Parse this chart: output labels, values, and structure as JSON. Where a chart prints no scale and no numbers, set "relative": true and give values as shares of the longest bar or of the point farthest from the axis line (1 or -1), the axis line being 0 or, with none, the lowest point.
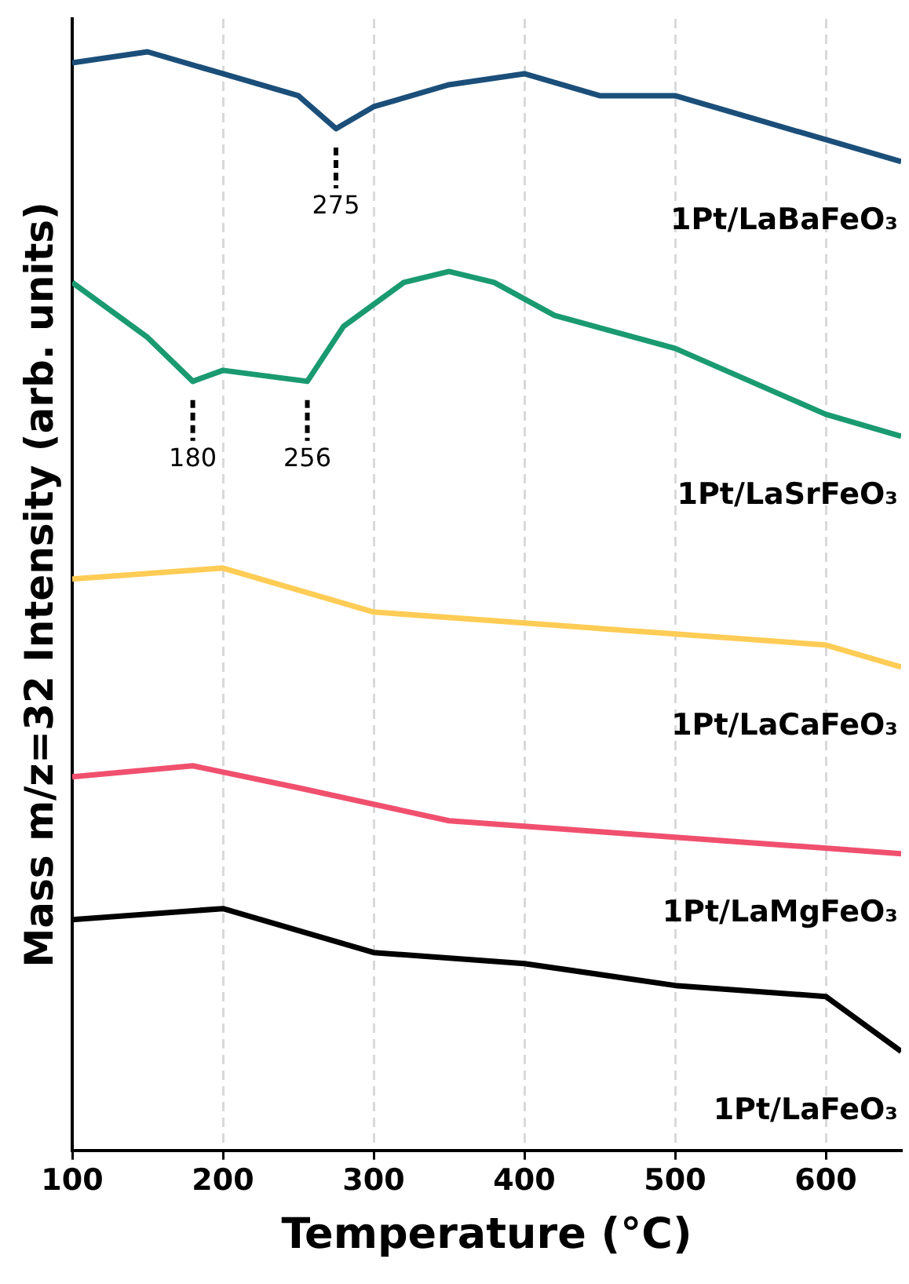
{
  "chart_data": {
    "type": "line",
    "xlabel": "Temperature (°C)",
    "ylabel": "Mass m/z=32 Intensity (arb. units)",
    "relative": true,
    "xlim": [
      100,
      650
    ],
    "xticks": [
      100,
      200,
      300,
      400,
      500,
      600
    ],
    "grid": "x",
    "legend": false,
    "series": [
      {
        "name": "1Pt/LaBaFeO₃",
        "color": "#1b4f7a",
        "x": [
          100,
          150,
          200,
          250,
          275,
          300,
          350,
          400,
          450,
          500,
          550,
          600,
          650
        ],
        "values": [
          0.99,
          1.0,
          0.98,
          0.96,
          0.93,
          0.95,
          0.97,
          0.98,
          0.96,
          0.96,
          0.94,
          0.92,
          0.9
        ]
      },
      {
        "name": "1Pt/LaSrFeO₃",
        "color": "#1a9a70",
        "x": [
          100,
          150,
          180,
          200,
          256,
          280,
          320,
          350,
          380,
          420,
          500,
          550,
          600,
          650
        ],
        "values": [
          0.79,
          0.74,
          0.7,
          0.71,
          0.7,
          0.75,
          0.79,
          0.8,
          0.79,
          0.76,
          0.73,
          0.7,
          0.67,
          0.65
        ]
      },
      {
        "name": "1Pt/LaCaFeO₃",
        "color": "#ffcc55",
        "x": [
          100,
          200,
          300,
          400,
          500,
          600,
          650
        ],
        "values": [
          0.52,
          0.53,
          0.49,
          0.48,
          0.47,
          0.46,
          0.44
        ]
      },
      {
        "name": "1Pt/LaMgFeO₃",
        "color": "#f0506e",
        "x": [
          100,
          180,
          250,
          350,
          450,
          550,
          650
        ],
        "values": [
          0.34,
          0.35,
          0.33,
          0.3,
          0.29,
          0.28,
          0.27
        ]
      },
      {
        "name": "1Pt/LaFeO₃",
        "color": "#000000",
        "x": [
          100,
          200,
          300,
          400,
          500,
          600,
          650
        ],
        "values": [
          0.21,
          0.22,
          0.18,
          0.17,
          0.15,
          0.14,
          0.09
        ]
      }
    ],
    "annotations": [
      {
        "text": "275",
        "x": 275,
        "y": 0.93
      },
      {
        "text": "180",
        "x": 180,
        "y": 0.7
      },
      {
        "text": "256",
        "x": 256,
        "y": 0.7
      }
    ]
  }
}
